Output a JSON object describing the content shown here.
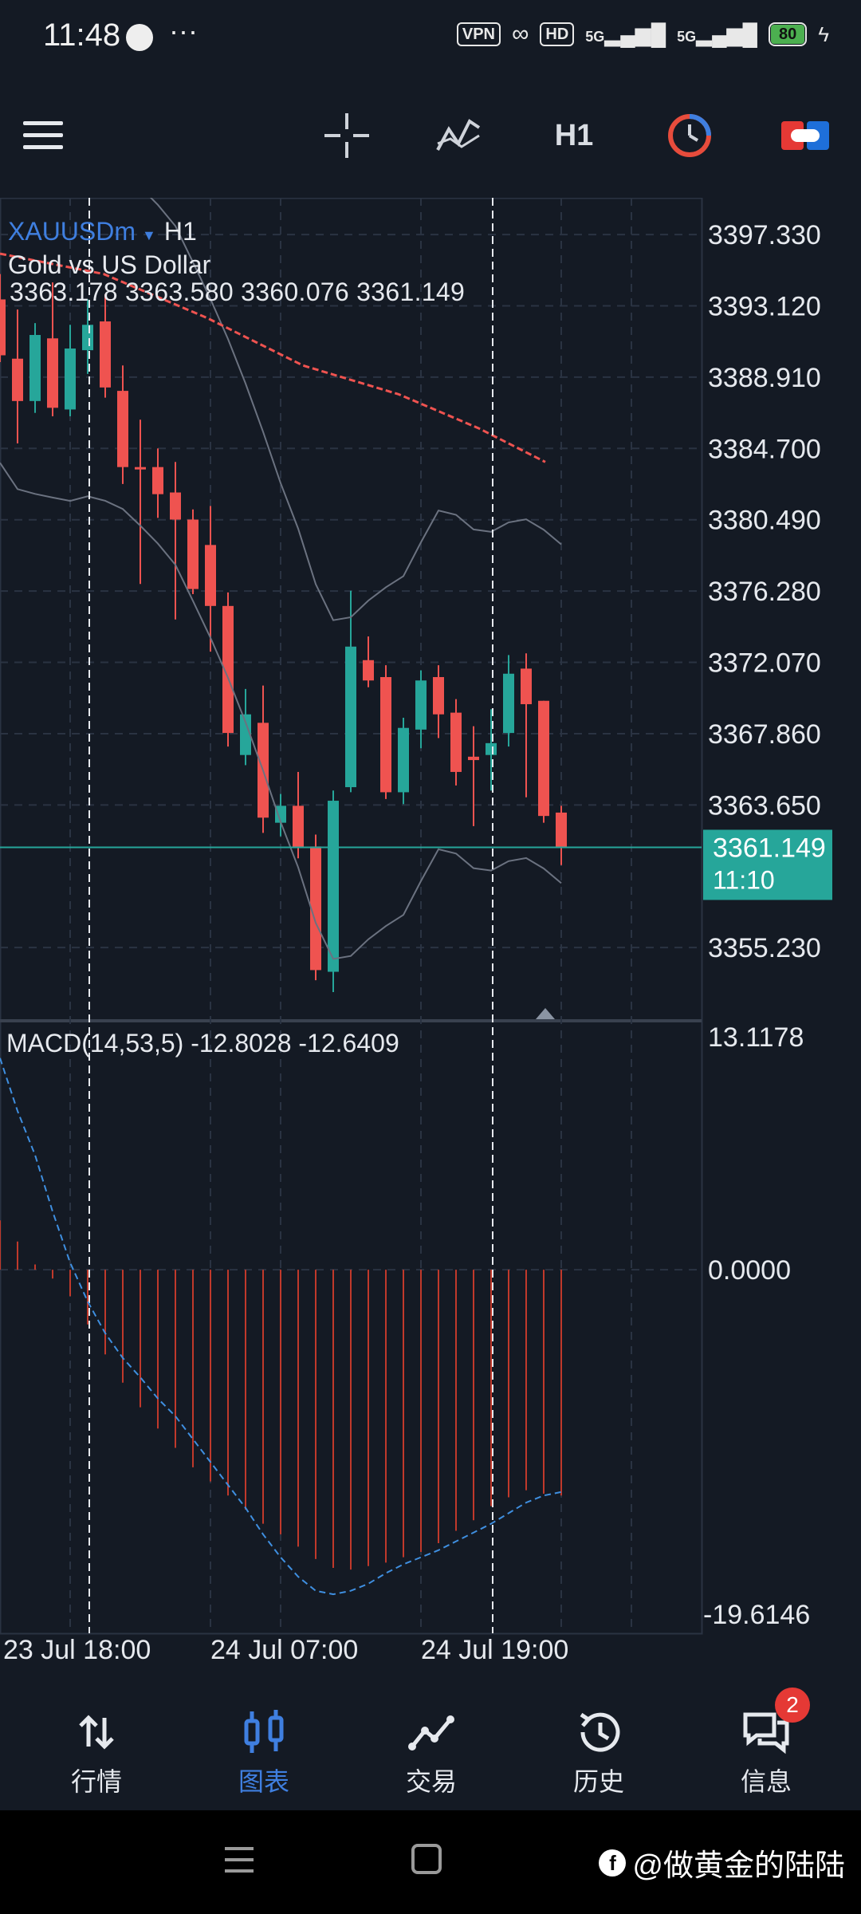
{
  "status_bar": {
    "time": "11:48",
    "dots": "···",
    "vpn": "VPN",
    "hd": "HD",
    "net1": "5G",
    "net2": "5G",
    "battery": "80"
  },
  "toolbar": {
    "timeframe": "H1",
    "icons": [
      "menu-icon",
      "crosshair-icon",
      "indicators-icon",
      "timeframe-button",
      "one-click-trading-icon",
      "trade-panel-icon"
    ]
  },
  "chart": {
    "symbol": "XAUUSDm",
    "symbol_timeframe": "H1",
    "description": "Gold vs US Dollar",
    "ohlc": "3363.178 3363.580 3360.076 3361.149",
    "price_axis": [
      "3397.330",
      "3393.120",
      "3388.910",
      "3384.700",
      "3380.490",
      "3376.280",
      "3372.070",
      "3367.860",
      "3363.650",
      "3355.230"
    ],
    "current_price": "3361.149",
    "countdown": "11:10",
    "macd_label": "MACD(14,53,5) -12.8028 -12.6409",
    "macd_axis": [
      "13.1178",
      "0.0000",
      "-19.6146"
    ],
    "time_axis": [
      "23 Jul 18:00",
      "24 Jul 07:00",
      "24 Jul 19:00"
    ],
    "colors": {
      "bull": "#26a69a",
      "bear": "#ef5350",
      "grid": "#2a3342",
      "accent": "#3f7fe0"
    }
  },
  "chart_data": {
    "type": "candlestick",
    "symbol": "XAUUSDm",
    "timeframe": "H1",
    "ylim": [
      3351.0,
      3399.5
    ],
    "candles": [
      {
        "o": 3393.5,
        "h": 3395.0,
        "l": 3389.8,
        "c": 3390.2
      },
      {
        "o": 3390.0,
        "h": 3392.9,
        "l": 3385.0,
        "c": 3387.5
      },
      {
        "o": 3387.5,
        "h": 3392.1,
        "l": 3386.8,
        "c": 3391.4
      },
      {
        "o": 3391.2,
        "h": 3394.5,
        "l": 3386.6,
        "c": 3387.1
      },
      {
        "o": 3387.0,
        "h": 3392.0,
        "l": 3386.6,
        "c": 3390.6
      },
      {
        "o": 3390.5,
        "h": 3393.5,
        "l": 3389.1,
        "c": 3392.0
      },
      {
        "o": 3392.2,
        "h": 3393.8,
        "l": 3387.7,
        "c": 3388.3
      },
      {
        "o": 3388.1,
        "h": 3389.6,
        "l": 3382.6,
        "c": 3383.6
      },
      {
        "o": 3383.6,
        "h": 3386.4,
        "l": 3376.7,
        "c": 3383.5
      },
      {
        "o": 3383.6,
        "h": 3384.7,
        "l": 3380.6,
        "c": 3382.0
      },
      {
        "o": 3382.1,
        "h": 3383.9,
        "l": 3374.6,
        "c": 3380.5
      },
      {
        "o": 3380.5,
        "h": 3381.1,
        "l": 3376.1,
        "c": 3376.4
      },
      {
        "o": 3379.0,
        "h": 3381.3,
        "l": 3372.7,
        "c": 3375.4
      },
      {
        "o": 3375.4,
        "h": 3376.2,
        "l": 3367.1,
        "c": 3367.9
      },
      {
        "o": 3366.6,
        "h": 3370.5,
        "l": 3366.0,
        "c": 3369.0
      },
      {
        "o": 3368.5,
        "h": 3370.7,
        "l": 3362.0,
        "c": 3362.9
      },
      {
        "o": 3362.6,
        "h": 3364.3,
        "l": 3361.8,
        "c": 3363.6
      },
      {
        "o": 3363.6,
        "h": 3365.6,
        "l": 3360.5,
        "c": 3361.1
      },
      {
        "o": 3361.2,
        "h": 3361.9,
        "l": 3353.3,
        "c": 3353.9
      },
      {
        "o": 3353.8,
        "h": 3364.5,
        "l": 3352.6,
        "c": 3363.9
      },
      {
        "o": 3364.7,
        "h": 3376.3,
        "l": 3364.4,
        "c": 3373.0
      },
      {
        "o": 3372.2,
        "h": 3373.6,
        "l": 3370.6,
        "c": 3371.0
      },
      {
        "o": 3371.2,
        "h": 3371.9,
        "l": 3364.0,
        "c": 3364.4
      },
      {
        "o": 3364.4,
        "h": 3368.8,
        "l": 3363.7,
        "c": 3368.2
      },
      {
        "o": 3368.1,
        "h": 3371.6,
        "l": 3367.0,
        "c": 3371.0
      },
      {
        "o": 3371.2,
        "h": 3371.9,
        "l": 3367.6,
        "c": 3369.0
      },
      {
        "o": 3369.1,
        "h": 3369.9,
        "l": 3364.8,
        "c": 3365.6
      },
      {
        "o": 3366.5,
        "h": 3368.3,
        "l": 3362.4,
        "c": 3366.3
      },
      {
        "o": 3366.6,
        "h": 3369.3,
        "l": 3364.5,
        "c": 3367.3
      },
      {
        "o": 3367.9,
        "h": 3372.5,
        "l": 3367.1,
        "c": 3371.4
      },
      {
        "o": 3371.7,
        "h": 3372.6,
        "l": 3364.1,
        "c": 3369.6
      },
      {
        "o": 3369.8,
        "h": 3369.8,
        "l": 3362.6,
        "c": 3363.0
      },
      {
        "o": 3363.2,
        "h": 3363.6,
        "l": 3360.1,
        "c": 3361.1
      }
    ],
    "macd_histogram": [
      2.8,
      1.6,
      0.3,
      -0.5,
      -1.5,
      -3.1,
      -4.8,
      -6.4,
      -7.8,
      -9.0,
      -10.1,
      -11.2,
      -12.0,
      -12.8,
      -13.6,
      -14.4,
      -15.0,
      -15.7,
      -16.4,
      -16.9,
      -17.0,
      -16.8,
      -16.6,
      -16.3,
      -16.0,
      -15.5,
      -14.8,
      -14.2,
      -13.4,
      -12.9,
      -12.5,
      -12.7,
      -12.8
    ],
    "macd_signal": [
      12.0,
      9.0,
      6.5,
      3.3,
      0.4,
      -1.8,
      -3.6,
      -5.0,
      -6.1,
      -7.3,
      -8.3,
      -9.6,
      -10.9,
      -12.2,
      -13.5,
      -15.0,
      -16.3,
      -17.4,
      -18.2,
      -18.4,
      -18.2,
      -17.8,
      -17.2,
      -16.7,
      -16.3,
      -15.9,
      -15.4,
      -14.9,
      -14.4,
      -13.8,
      -13.2,
      -12.8,
      -12.6
    ],
    "macd_ylim": [
      -19.6146,
      13.1178
    ]
  },
  "bottom_nav": {
    "items": [
      {
        "label": "行情",
        "icon": "quotes-icon"
      },
      {
        "label": "图表",
        "icon": "chart-icon"
      },
      {
        "label": "交易",
        "icon": "trade-icon"
      },
      {
        "label": "历史",
        "icon": "history-icon"
      },
      {
        "label": "信息",
        "icon": "messages-icon"
      }
    ],
    "message_badge": "2"
  },
  "watermark": "@做黄金的陆陆"
}
